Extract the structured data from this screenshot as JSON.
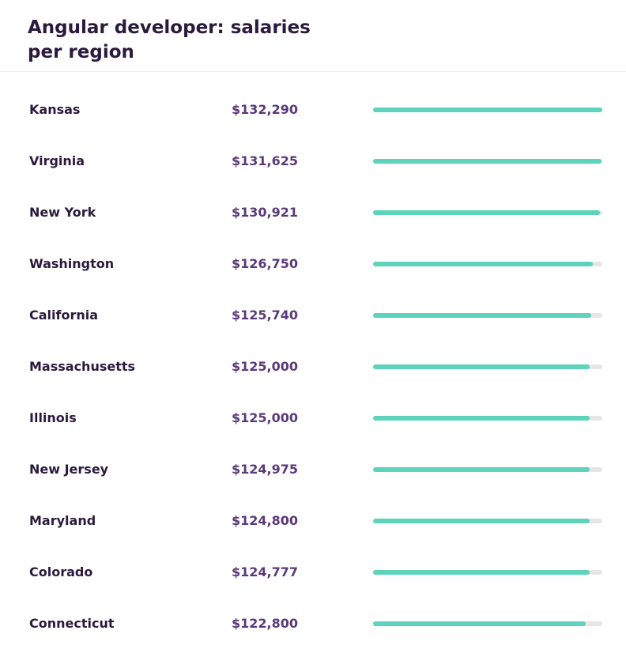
{
  "header": {
    "title": "Angular developer: salaries per region"
  },
  "colors": {
    "bar_fill": "#5dd3bb",
    "bar_track": "#e6e6e6",
    "title_text": "#2b1a3d",
    "salary_text": "#5a3a7a"
  },
  "chart_data": {
    "type": "bar",
    "orientation": "horizontal",
    "title": "Angular developer: salaries per region",
    "xlabel": "",
    "ylabel": "",
    "xlim": [
      0,
      132290
    ],
    "categories": [
      "Kansas",
      "Virginia",
      "New York",
      "Washington",
      "California",
      "Massachusetts",
      "Illinois",
      "New Jersey",
      "Maryland",
      "Colorado",
      "Connecticut"
    ],
    "values": [
      132290,
      131625,
      130921,
      126750,
      125740,
      125000,
      125000,
      124975,
      124800,
      124777,
      122800
    ],
    "value_labels": [
      "$132,290",
      "$131,625",
      "$130,921",
      "$126,750",
      "$125,740",
      "$125,000",
      "$125,000",
      "$124,975",
      "$124,800",
      "$124,777",
      "$122,800"
    ]
  }
}
